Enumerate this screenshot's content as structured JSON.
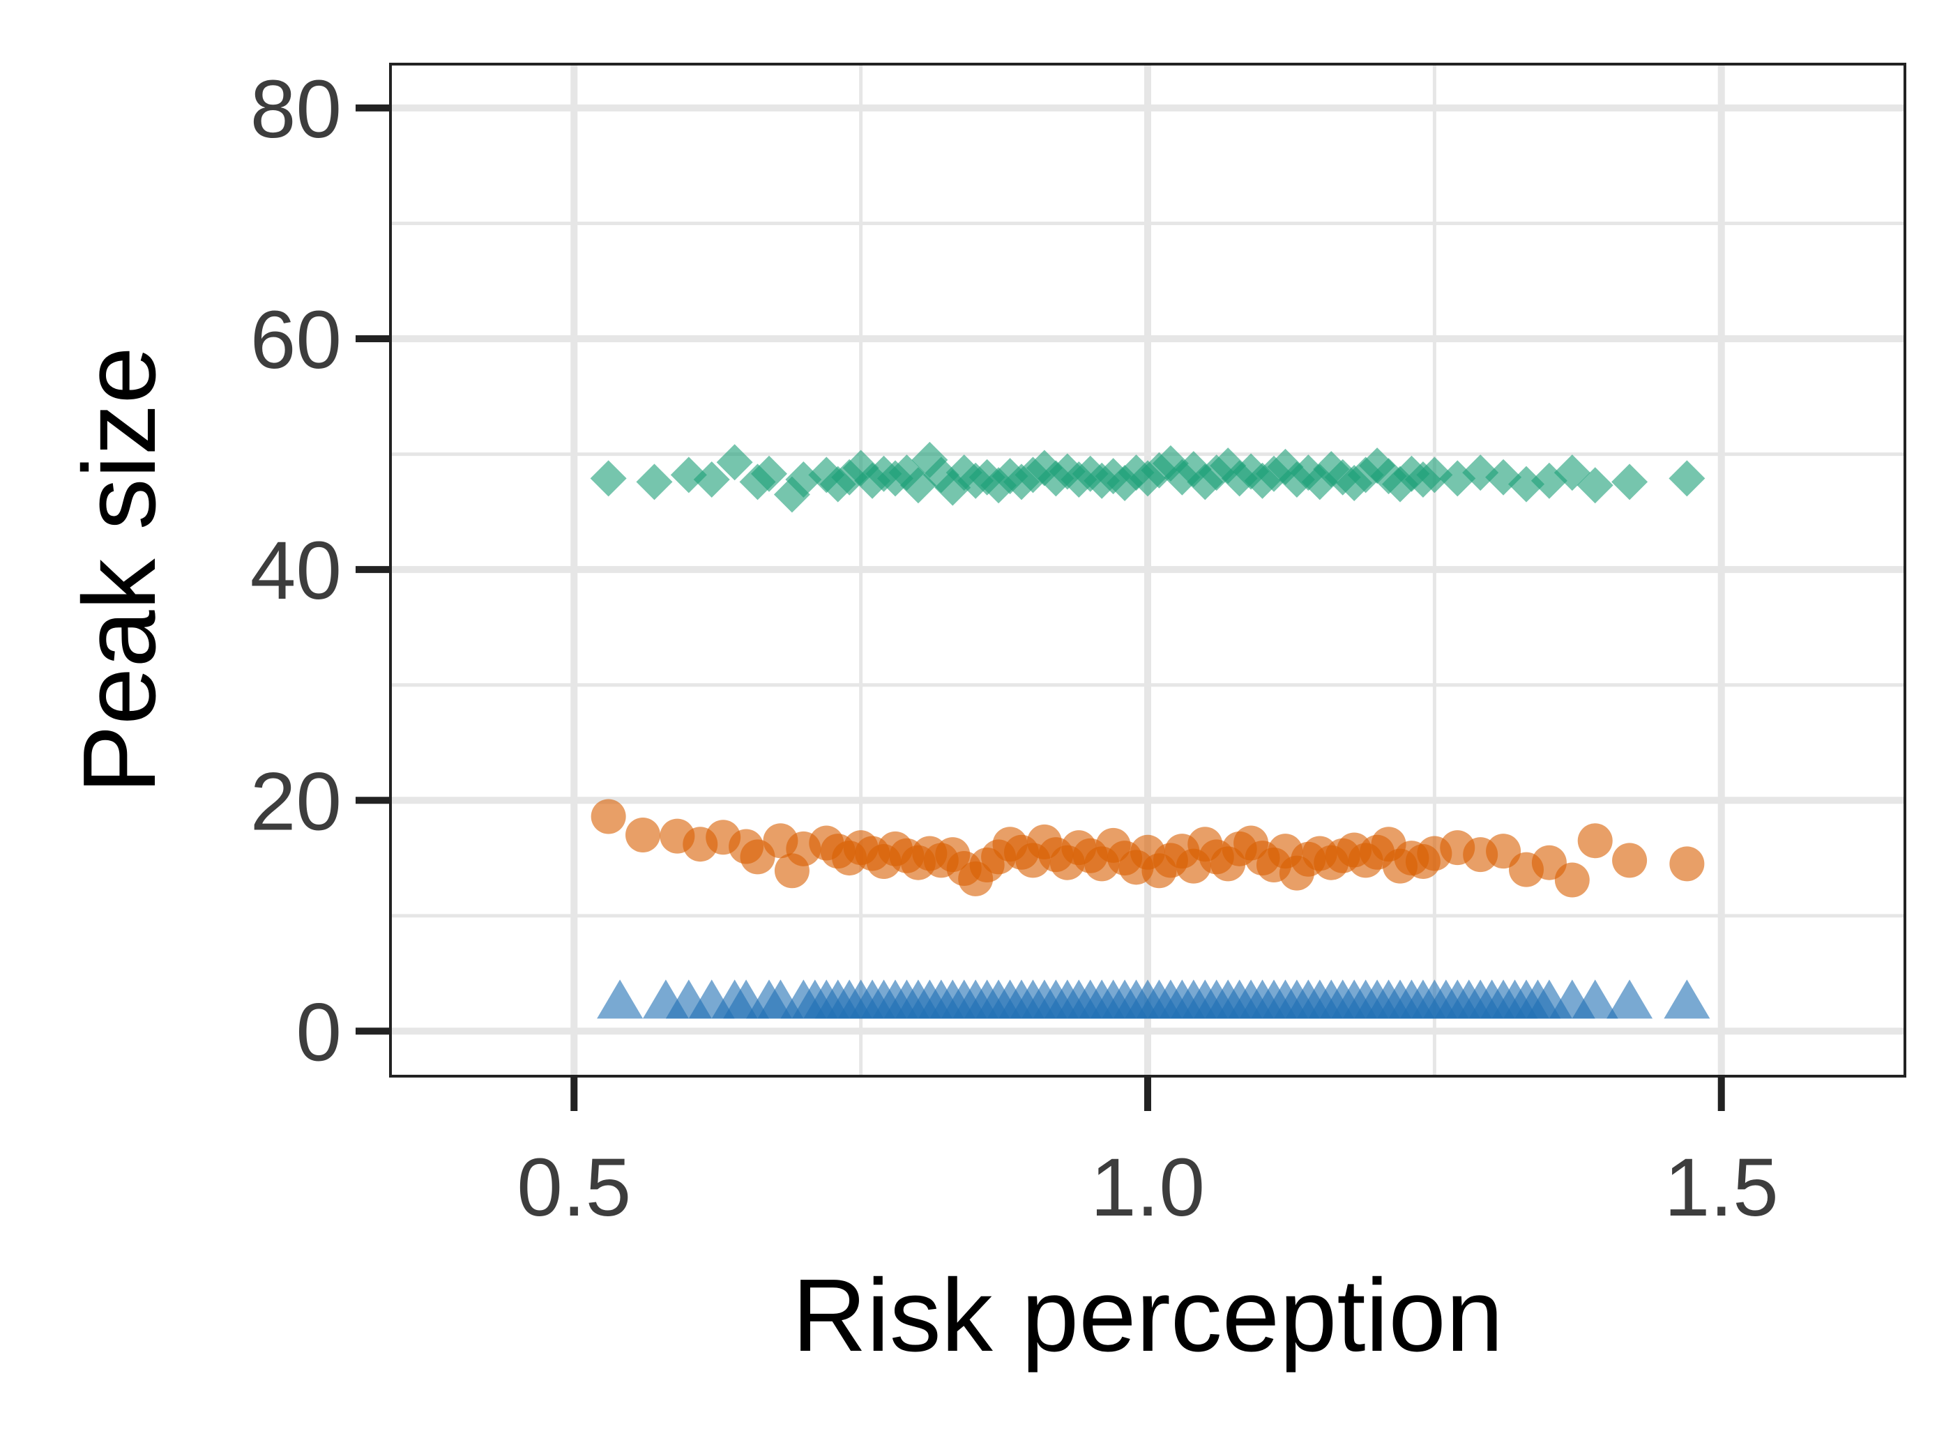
{
  "chart_data": {
    "type": "scatter",
    "title": "",
    "xlabel": "Risk perception",
    "ylabel": "Peak size",
    "xlim": [
      0.34,
      1.66
    ],
    "ylim": [
      -3.9,
      83.8
    ],
    "x_ticks": [
      0.5,
      1.0,
      1.5
    ],
    "x_tick_labels": [
      "0.5",
      "1.0",
      "1.5"
    ],
    "y_ticks": [
      0,
      20,
      40,
      60,
      80
    ],
    "y_tick_labels": [
      "0",
      "20",
      "40",
      "60",
      "80"
    ],
    "x_minor_grid": [
      0.75,
      1.25
    ],
    "y_minor_grid": [
      10,
      30,
      50,
      70
    ],
    "grid": true,
    "legend": "none",
    "colors": {
      "green": "#1b9e77",
      "orange": "#d95f02",
      "blue": "#1f6fb4",
      "grid": "#e6e6e6",
      "frame": "#222222"
    },
    "series": [
      {
        "marker": "diamond",
        "color": "#1b9e77",
        "points": [
          [
            0.53,
            47.9
          ],
          [
            0.57,
            47.6
          ],
          [
            0.6,
            48.2
          ],
          [
            0.62,
            47.8
          ],
          [
            0.64,
            49.3
          ],
          [
            0.66,
            47.6
          ],
          [
            0.67,
            48.3
          ],
          [
            0.69,
            46.5
          ],
          [
            0.7,
            47.8
          ],
          [
            0.72,
            48.2
          ],
          [
            0.73,
            47.4
          ],
          [
            0.74,
            48.0
          ],
          [
            0.75,
            48.8
          ],
          [
            0.76,
            47.7
          ],
          [
            0.77,
            48.3
          ],
          [
            0.78,
            47.9
          ],
          [
            0.79,
            48.4
          ],
          [
            0.8,
            47.3
          ],
          [
            0.81,
            49.5
          ],
          [
            0.82,
            48.2
          ],
          [
            0.83,
            47.1
          ],
          [
            0.84,
            48.4
          ],
          [
            0.85,
            47.7
          ],
          [
            0.86,
            48.0
          ],
          [
            0.87,
            47.3
          ],
          [
            0.88,
            48.1
          ],
          [
            0.89,
            47.6
          ],
          [
            0.9,
            48.2
          ],
          [
            0.91,
            48.8
          ],
          [
            0.92,
            47.9
          ],
          [
            0.93,
            48.5
          ],
          [
            0.94,
            47.8
          ],
          [
            0.95,
            48.3
          ],
          [
            0.96,
            47.7
          ],
          [
            0.97,
            48.1
          ],
          [
            0.98,
            47.5
          ],
          [
            0.99,
            48.4
          ],
          [
            1.0,
            47.9
          ],
          [
            1.01,
            48.6
          ],
          [
            1.02,
            49.2
          ],
          [
            1.03,
            48.0
          ],
          [
            1.04,
            48.7
          ],
          [
            1.05,
            47.6
          ],
          [
            1.06,
            48.4
          ],
          [
            1.07,
            49.0
          ],
          [
            1.08,
            47.9
          ],
          [
            1.09,
            48.5
          ],
          [
            1.1,
            47.7
          ],
          [
            1.11,
            48.3
          ],
          [
            1.12,
            48.9
          ],
          [
            1.13,
            47.8
          ],
          [
            1.14,
            48.4
          ],
          [
            1.15,
            47.6
          ],
          [
            1.16,
            48.7
          ],
          [
            1.17,
            48.0
          ],
          [
            1.18,
            47.5
          ],
          [
            1.19,
            48.2
          ],
          [
            1.2,
            49.0
          ],
          [
            1.21,
            48.1
          ],
          [
            1.22,
            47.4
          ],
          [
            1.23,
            48.3
          ],
          [
            1.24,
            47.8
          ],
          [
            1.25,
            48.2
          ],
          [
            1.27,
            47.9
          ],
          [
            1.29,
            48.4
          ],
          [
            1.31,
            48.0
          ],
          [
            1.33,
            47.4
          ],
          [
            1.35,
            47.7
          ],
          [
            1.37,
            48.4
          ],
          [
            1.39,
            47.3
          ],
          [
            1.42,
            47.6
          ],
          [
            1.47,
            47.9
          ]
        ]
      },
      {
        "marker": "circle",
        "color": "#d95f02",
        "points": [
          [
            0.53,
            18.6
          ],
          [
            0.56,
            17.0
          ],
          [
            0.59,
            16.9
          ],
          [
            0.61,
            16.2
          ],
          [
            0.63,
            16.8
          ],
          [
            0.65,
            16.0
          ],
          [
            0.66,
            15.1
          ],
          [
            0.68,
            16.5
          ],
          [
            0.69,
            13.9
          ],
          [
            0.7,
            15.8
          ],
          [
            0.72,
            16.3
          ],
          [
            0.73,
            15.6
          ],
          [
            0.74,
            15.0
          ],
          [
            0.75,
            15.9
          ],
          [
            0.76,
            15.4
          ],
          [
            0.77,
            14.7
          ],
          [
            0.78,
            15.8
          ],
          [
            0.79,
            15.2
          ],
          [
            0.8,
            14.6
          ],
          [
            0.81,
            15.4
          ],
          [
            0.82,
            14.8
          ],
          [
            0.83,
            15.3
          ],
          [
            0.84,
            14.1
          ],
          [
            0.85,
            13.2
          ],
          [
            0.86,
            14.4
          ],
          [
            0.87,
            15.1
          ],
          [
            0.88,
            16.2
          ],
          [
            0.89,
            15.5
          ],
          [
            0.9,
            14.8
          ],
          [
            0.91,
            16.4
          ],
          [
            0.92,
            15.3
          ],
          [
            0.93,
            14.6
          ],
          [
            0.94,
            15.9
          ],
          [
            0.95,
            15.2
          ],
          [
            0.96,
            14.5
          ],
          [
            0.97,
            16.1
          ],
          [
            0.98,
            15.0
          ],
          [
            0.99,
            14.2
          ],
          [
            1.0,
            15.5
          ],
          [
            1.01,
            13.9
          ],
          [
            1.02,
            14.8
          ],
          [
            1.03,
            15.6
          ],
          [
            1.04,
            14.3
          ],
          [
            1.05,
            16.2
          ],
          [
            1.06,
            15.1
          ],
          [
            1.07,
            14.5
          ],
          [
            1.08,
            15.8
          ],
          [
            1.09,
            16.3
          ],
          [
            1.1,
            15.0
          ],
          [
            1.11,
            14.4
          ],
          [
            1.12,
            15.6
          ],
          [
            1.13,
            13.7
          ],
          [
            1.14,
            14.9
          ],
          [
            1.15,
            15.4
          ],
          [
            1.16,
            14.6
          ],
          [
            1.17,
            15.2
          ],
          [
            1.18,
            15.7
          ],
          [
            1.19,
            14.8
          ],
          [
            1.2,
            15.5
          ],
          [
            1.21,
            16.2
          ],
          [
            1.22,
            14.3
          ],
          [
            1.23,
            15.0
          ],
          [
            1.24,
            14.7
          ],
          [
            1.25,
            15.4
          ],
          [
            1.27,
            15.9
          ],
          [
            1.29,
            15.3
          ],
          [
            1.31,
            15.6
          ],
          [
            1.33,
            14.0
          ],
          [
            1.35,
            14.6
          ],
          [
            1.37,
            13.1
          ],
          [
            1.39,
            16.5
          ],
          [
            1.42,
            14.8
          ],
          [
            1.47,
            14.5
          ]
        ]
      },
      {
        "marker": "triangle",
        "color": "#1f6fb4",
        "points": [
          [
            0.54,
            2.3
          ],
          [
            0.58,
            2.3
          ],
          [
            0.6,
            2.3
          ],
          [
            0.62,
            2.3
          ],
          [
            0.64,
            2.3
          ],
          [
            0.65,
            2.3
          ],
          [
            0.67,
            2.3
          ],
          [
            0.68,
            2.3
          ],
          [
            0.7,
            2.3
          ],
          [
            0.71,
            2.3
          ],
          [
            0.72,
            2.3
          ],
          [
            0.73,
            2.3
          ],
          [
            0.74,
            2.3
          ],
          [
            0.75,
            2.3
          ],
          [
            0.76,
            2.3
          ],
          [
            0.77,
            2.3
          ],
          [
            0.78,
            2.3
          ],
          [
            0.79,
            2.3
          ],
          [
            0.8,
            2.3
          ],
          [
            0.81,
            2.3
          ],
          [
            0.82,
            2.3
          ],
          [
            0.83,
            2.3
          ],
          [
            0.84,
            2.3
          ],
          [
            0.85,
            2.3
          ],
          [
            0.86,
            2.3
          ],
          [
            0.87,
            2.3
          ],
          [
            0.88,
            2.3
          ],
          [
            0.89,
            2.3
          ],
          [
            0.9,
            2.3
          ],
          [
            0.91,
            2.3
          ],
          [
            0.92,
            2.3
          ],
          [
            0.93,
            2.3
          ],
          [
            0.94,
            2.3
          ],
          [
            0.95,
            2.3
          ],
          [
            0.96,
            2.3
          ],
          [
            0.97,
            2.3
          ],
          [
            0.98,
            2.3
          ],
          [
            0.99,
            2.3
          ],
          [
            1.0,
            2.3
          ],
          [
            1.01,
            2.3
          ],
          [
            1.02,
            2.3
          ],
          [
            1.03,
            2.3
          ],
          [
            1.04,
            2.3
          ],
          [
            1.05,
            2.3
          ],
          [
            1.06,
            2.3
          ],
          [
            1.07,
            2.3
          ],
          [
            1.08,
            2.3
          ],
          [
            1.09,
            2.3
          ],
          [
            1.1,
            2.3
          ],
          [
            1.11,
            2.3
          ],
          [
            1.12,
            2.3
          ],
          [
            1.13,
            2.3
          ],
          [
            1.14,
            2.3
          ],
          [
            1.15,
            2.3
          ],
          [
            1.16,
            2.3
          ],
          [
            1.17,
            2.3
          ],
          [
            1.18,
            2.3
          ],
          [
            1.19,
            2.3
          ],
          [
            1.2,
            2.3
          ],
          [
            1.21,
            2.3
          ],
          [
            1.22,
            2.3
          ],
          [
            1.23,
            2.3
          ],
          [
            1.24,
            2.3
          ],
          [
            1.25,
            2.3
          ],
          [
            1.26,
            2.3
          ],
          [
            1.27,
            2.3
          ],
          [
            1.28,
            2.3
          ],
          [
            1.29,
            2.3
          ],
          [
            1.3,
            2.3
          ],
          [
            1.31,
            2.3
          ],
          [
            1.32,
            2.3
          ],
          [
            1.33,
            2.3
          ],
          [
            1.34,
            2.3
          ],
          [
            1.35,
            2.3
          ],
          [
            1.37,
            2.3
          ],
          [
            1.39,
            2.3
          ],
          [
            1.42,
            2.3
          ],
          [
            1.47,
            2.3
          ]
        ]
      }
    ]
  }
}
